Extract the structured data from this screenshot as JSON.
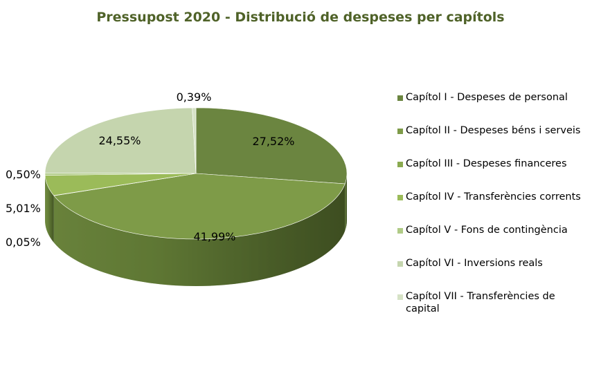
{
  "chart_data": {
    "type": "pie",
    "title": "Pressupost 2020 - Distribució de despeses per capítols",
    "slices": [
      {
        "label": "Capítol I - Despeses de personal",
        "value": 27.52,
        "display": "27,52%",
        "color": "#6B8540"
      },
      {
        "label": "Capítol II - Despeses béns i serveis",
        "value": 41.99,
        "display": "41,99%",
        "color": "#7E9B48"
      },
      {
        "label": "Capítol III - Despeses financeres",
        "value": 0.05,
        "display": "0,05%",
        "color": "#8AAA50"
      },
      {
        "label": "Capítol IV - Transferències corrents",
        "value": 5.01,
        "display": "5,01%",
        "color": "#9BBB59"
      },
      {
        "label": "Capítol V - Fons de contingència",
        "value": 0.5,
        "display": "0,50%",
        "color": "#B0CB86"
      },
      {
        "label": "Capítol VI - Inversions reals",
        "value": 24.55,
        "display": "24,55%",
        "color": "#C5D5AE"
      },
      {
        "label": "Capítol VII - Transferències de capital",
        "value": 0.39,
        "display": "0,39%",
        "color": "#D6E2C6"
      }
    ],
    "legend_position": "right",
    "style": "3d"
  }
}
